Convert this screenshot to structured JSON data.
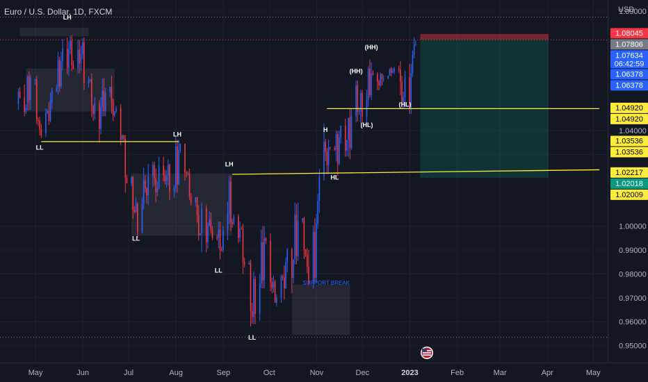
{
  "header": {
    "title": "Euro / U.S. Dollar, 1D, FXCM",
    "currency": "USD"
  },
  "chart_data": {
    "type": "candlestick",
    "symbol": "Euro / U.S. Dollar",
    "timeframe": "1D",
    "broker": "FXCM",
    "ylim": [
      0.9435,
      1.0935
    ],
    "price_axis_ticks": [
      "1.09000",
      "1.04000",
      "1.03000",
      "1.00000",
      "0.99000",
      "0.98000",
      "0.97000",
      "0.96000",
      "0.95000"
    ],
    "time_axis_ticks": [
      "May",
      "Jun",
      "Jul",
      "Aug",
      "Sep",
      "Oct",
      "Nov",
      "Dec",
      "2023",
      "Feb",
      "Mar",
      "Apr",
      "May"
    ],
    "price_labels": [
      {
        "value": 1.08045,
        "text": "1.08045",
        "bg": "#f23645",
        "fg": "#ffffff"
      },
      {
        "value": 1.07806,
        "text": "1.07806",
        "bg": "#787b86",
        "fg": "#ffffff"
      },
      {
        "value": 1.07634,
        "text": "1.07634",
        "sub": "06:42:59",
        "bg": "#2962ff",
        "fg": "#ffffff"
      },
      {
        "value": 1.06378,
        "text": "1.06378",
        "bg": "#2962ff",
        "fg": "#ffffff"
      },
      {
        "value": 1.06378,
        "text": "1.06378",
        "bg": "#2962ff",
        "fg": "#ffffff",
        "stack": 1
      },
      {
        "value": 1.0492,
        "text": "1.04920",
        "bg": "#ffeb3b",
        "fg": "#000000"
      },
      {
        "value": 1.0492,
        "text": "1.04920",
        "bg": "#ffeb3b",
        "fg": "#000000",
        "stack": 1
      },
      {
        "value": 1.03536,
        "text": "1.03536",
        "bg": "#ffeb3b",
        "fg": "#000000"
      },
      {
        "value": 1.03536,
        "text": "1.03536",
        "bg": "#ffeb3b",
        "fg": "#000000",
        "stack": 1
      },
      {
        "value": 1.02217,
        "text": "1.02217",
        "bg": "#ffeb3b",
        "fg": "#000000"
      },
      {
        "value": 1.02018,
        "text": "1.02018",
        "bg": "#089981",
        "fg": "#ffffff"
      },
      {
        "value": 1.02009,
        "text": "1.02009",
        "bg": "#ffeb3b",
        "fg": "#000000"
      }
    ],
    "structure_labels": [
      {
        "text": "LH",
        "date": "2022-05-30",
        "price": 1.0865
      },
      {
        "text": "LL",
        "date": "2022-05-12",
        "price": 1.032
      },
      {
        "text": "LH",
        "date": "2022-08-10",
        "price": 1.0375
      },
      {
        "text": "LL",
        "date": "2022-07-14",
        "price": 0.994
      },
      {
        "text": "LL",
        "date": "2022-09-06",
        "price": 0.9805
      },
      {
        "text": "LH",
        "date": "2022-09-13",
        "price": 1.025
      },
      {
        "text": "LL",
        "date": "2022-09-28",
        "price": 0.9525
      },
      {
        "text": "H",
        "date": "2022-11-15",
        "price": 1.0395
      },
      {
        "text": "HL",
        "date": "2022-11-21",
        "price": 1.0195
      },
      {
        "text": "(HH)",
        "date": "2022-12-05",
        "price": 1.064
      },
      {
        "text": "(HL)",
        "date": "2022-12-12",
        "price": 1.0415
      },
      {
        "text": "(HH)",
        "date": "2022-12-15",
        "price": 1.074
      },
      {
        "text": "(HL)",
        "date": "2023-01-06",
        "price": 1.05
      }
    ],
    "annotations": [
      {
        "text": "SUPPORT BREAK",
        "date": "2022-10-31",
        "price": 0.9755
      }
    ],
    "horizontal_lines": [
      {
        "from": "2022-05-13",
        "to": "2022-08-11",
        "price": 1.0354,
        "color": "#ffeb3b"
      },
      {
        "from": "2022-11-16",
        "to": "2023-04-30",
        "price": 1.0492,
        "color": "#ffeb3b"
      },
      {
        "from": "2022-09-15",
        "to": "2023-04-30",
        "price": 1.0217,
        "color": "#ffeb3b",
        "to_price": 1.0236
      }
    ],
    "dotted_lines": [
      {
        "price": 1.0875,
        "color": "#787b86"
      },
      {
        "price": 1.078,
        "color": "#f23645"
      },
      {
        "price": 0.9535,
        "color": "#787b86"
      }
    ],
    "zones": [
      {
        "from": "2022-04-29",
        "to": "2022-06-13",
        "top": 1.083,
        "bottom": 1.0795
      },
      {
        "from": "2022-05-03",
        "to": "2022-06-30",
        "top": 1.066,
        "bottom": 1.048
      },
      {
        "from": "2022-07-11",
        "to": "2022-09-15",
        "top": 1.022,
        "bottom": 0.996
      },
      {
        "from": "2022-10-24",
        "to": "2022-12-01",
        "top": 0.9755,
        "bottom": 0.9545
      }
    ],
    "position": {
      "type": "long",
      "from": "2023-01-16",
      "to": "2023-04-10",
      "entry": 1.07806,
      "stop": 1.08045,
      "target": 1.02018
    },
    "candles": [
      {
        "d": "2022-04-28",
        "o": 1.0512,
        "h": 1.0598,
        "l": 1.047,
        "c": 1.0497
      },
      {
        "d": "2022-05-04",
        "o": 1.052,
        "h": 1.064,
        "l": 1.0495,
        "c": 1.062
      },
      {
        "d": "2022-05-09",
        "o": 1.061,
        "h": 1.062,
        "l": 1.042,
        "c": 1.044
      },
      {
        "d": "2022-05-12",
        "o": 1.044,
        "h": 1.047,
        "l": 1.035,
        "c": 1.038
      },
      {
        "d": "2022-05-16",
        "o": 1.039,
        "h": 1.055,
        "l": 1.0385,
        "c": 1.053
      },
      {
        "d": "2022-05-20",
        "o": 1.052,
        "h": 1.06,
        "l": 1.05,
        "c": 1.058
      },
      {
        "d": "2022-05-24",
        "o": 1.058,
        "h": 1.072,
        "l": 1.056,
        "c": 1.069
      },
      {
        "d": "2022-05-27",
        "o": 1.069,
        "h": 1.078,
        "l": 1.064,
        "c": 1.074
      },
      {
        "d": "2022-06-01",
        "o": 1.074,
        "h": 1.079,
        "l": 1.063,
        "c": 1.066
      },
      {
        "d": "2022-06-06",
        "o": 1.066,
        "h": 1.077,
        "l": 1.065,
        "c": 1.072
      },
      {
        "d": "2022-06-09",
        "o": 1.072,
        "h": 1.078,
        "l": 1.058,
        "c": 1.061
      },
      {
        "d": "2022-06-14",
        "o": 1.061,
        "h": 1.063,
        "l": 1.045,
        "c": 1.047
      },
      {
        "d": "2022-06-17",
        "o": 1.047,
        "h": 1.053,
        "l": 1.036,
        "c": 1.05
      },
      {
        "d": "2022-06-22",
        "o": 1.05,
        "h": 1.061,
        "l": 1.047,
        "c": 1.056
      },
      {
        "d": "2022-06-27",
        "o": 1.056,
        "h": 1.062,
        "l": 1.045,
        "c": 1.048
      },
      {
        "d": "2022-07-01",
        "o": 1.048,
        "h": 1.05,
        "l": 1.035,
        "c": 1.038
      },
      {
        "d": "2022-07-06",
        "o": 1.038,
        "h": 1.039,
        "l": 1.015,
        "c": 1.018
      },
      {
        "d": "2022-07-11",
        "o": 1.018,
        "h": 1.02,
        "l": 1.004,
        "c": 1.006
      },
      {
        "d": "2022-07-14",
        "o": 1.006,
        "h": 1.011,
        "l": 0.996,
        "c": 1.009
      },
      {
        "d": "2022-07-19",
        "o": 1.009,
        "h": 1.025,
        "l": 1.008,
        "c": 1.021
      },
      {
        "d": "2022-07-25",
        "o": 1.021,
        "h": 1.026,
        "l": 1.011,
        "c": 1.016
      },
      {
        "d": "2022-07-29",
        "o": 1.016,
        "h": 1.028,
        "l": 1.014,
        "c": 1.021
      },
      {
        "d": "2022-08-04",
        "o": 1.021,
        "h": 1.027,
        "l": 1.012,
        "c": 1.016
      },
      {
        "d": "2022-08-09",
        "o": 1.016,
        "h": 1.037,
        "l": 1.015,
        "c": 1.032
      },
      {
        "d": "2022-08-12",
        "o": 1.032,
        "h": 1.033,
        "l": 1.02,
        "c": 1.022
      },
      {
        "d": "2022-08-17",
        "o": 1.022,
        "h": 1.023,
        "l": 1.008,
        "c": 1.01
      },
      {
        "d": "2022-08-22",
        "o": 1.01,
        "h": 1.011,
        "l": 0.995,
        "c": 0.997
      },
      {
        "d": "2022-08-26",
        "o": 0.997,
        "h": 1.009,
        "l": 0.99,
        "c": 1.0
      },
      {
        "d": "2022-08-31",
        "o": 1.0,
        "h": 1.008,
        "l": 0.991,
        "c": 0.995
      },
      {
        "d": "2022-09-06",
        "o": 0.995,
        "h": 1.001,
        "l": 0.987,
        "c": 0.99
      },
      {
        "d": "2022-09-09",
        "o": 0.99,
        "h": 1.012,
        "l": 0.989,
        "c": 1.005
      },
      {
        "d": "2022-09-13",
        "o": 1.005,
        "h": 1.02,
        "l": 0.999,
        "c": 1.001
      },
      {
        "d": "2022-09-16",
        "o": 1.001,
        "h": 1.004,
        "l": 0.994,
        "c": 0.999
      },
      {
        "d": "2022-09-21",
        "o": 0.999,
        "h": 1.0,
        "l": 0.981,
        "c": 0.984
      },
      {
        "d": "2022-09-26",
        "o": 0.984,
        "h": 0.985,
        "l": 0.959,
        "c": 0.962
      },
      {
        "d": "2022-09-29",
        "o": 0.962,
        "h": 0.98,
        "l": 0.96,
        "c": 0.976
      },
      {
        "d": "2022-10-04",
        "o": 0.976,
        "h": 0.999,
        "l": 0.975,
        "c": 0.995
      },
      {
        "d": "2022-10-07",
        "o": 0.995,
        "h": 0.996,
        "l": 0.972,
        "c": 0.974
      },
      {
        "d": "2022-10-12",
        "o": 0.974,
        "h": 0.979,
        "l": 0.965,
        "c": 0.97
      },
      {
        "d": "2022-10-17",
        "o": 0.97,
        "h": 0.988,
        "l": 0.969,
        "c": 0.985
      },
      {
        "d": "2022-10-21",
        "o": 0.985,
        "h": 0.99,
        "l": 0.973,
        "c": 0.986
      },
      {
        "d": "2022-10-26",
        "o": 0.986,
        "h": 1.009,
        "l": 0.985,
        "c": 1.002
      },
      {
        "d": "2022-10-31",
        "o": 1.002,
        "h": 1.003,
        "l": 0.986,
        "c": 0.988
      },
      {
        "d": "2022-11-03",
        "o": 0.988,
        "h": 0.99,
        "l": 0.974,
        "c": 0.976
      },
      {
        "d": "2022-11-07",
        "o": 0.976,
        "h": 1.004,
        "l": 0.975,
        "c": 1.001
      },
      {
        "d": "2022-11-10",
        "o": 1.001,
        "h": 1.023,
        "l": 1.0,
        "c": 1.021
      },
      {
        "d": "2022-11-14",
        "o": 1.021,
        "h": 1.042,
        "l": 1.02,
        "c": 1.033
      },
      {
        "d": "2022-11-18",
        "o": 1.033,
        "h": 1.038,
        "l": 1.023,
        "c": 1.032
      },
      {
        "d": "2022-11-22",
        "o": 1.032,
        "h": 1.039,
        "l": 1.022,
        "c": 1.037
      },
      {
        "d": "2022-11-25",
        "o": 1.037,
        "h": 1.044,
        "l": 1.03,
        "c": 1.036
      },
      {
        "d": "2022-11-30",
        "o": 1.036,
        "h": 1.048,
        "l": 1.029,
        "c": 1.046
      },
      {
        "d": "2022-12-05",
        "o": 1.046,
        "h": 1.06,
        "l": 1.044,
        "c": 1.048
      },
      {
        "d": "2022-12-08",
        "o": 1.048,
        "h": 1.056,
        "l": 1.044,
        "c": 1.053
      },
      {
        "d": "2022-12-13",
        "o": 1.053,
        "h": 1.07,
        "l": 1.051,
        "c": 1.064
      },
      {
        "d": "2022-12-16",
        "o": 1.064,
        "h": 1.066,
        "l": 1.057,
        "c": 1.059
      },
      {
        "d": "2022-12-21",
        "o": 1.059,
        "h": 1.066,
        "l": 1.058,
        "c": 1.063
      },
      {
        "d": "2022-12-27",
        "o": 1.063,
        "h": 1.07,
        "l": 1.06,
        "c": 1.066
      },
      {
        "d": "2023-01-02",
        "o": 1.066,
        "h": 1.068,
        "l": 1.05,
        "c": 1.054
      },
      {
        "d": "2023-01-06",
        "o": 1.054,
        "h": 1.067,
        "l": 1.048,
        "c": 1.064
      },
      {
        "d": "2023-01-11",
        "o": 1.064,
        "h": 1.078,
        "l": 1.063,
        "c": 1.076
      },
      {
        "d": "2023-01-13",
        "o": 1.076,
        "h": 1.08,
        "l": 1.074,
        "c": 1.0763
      }
    ]
  }
}
